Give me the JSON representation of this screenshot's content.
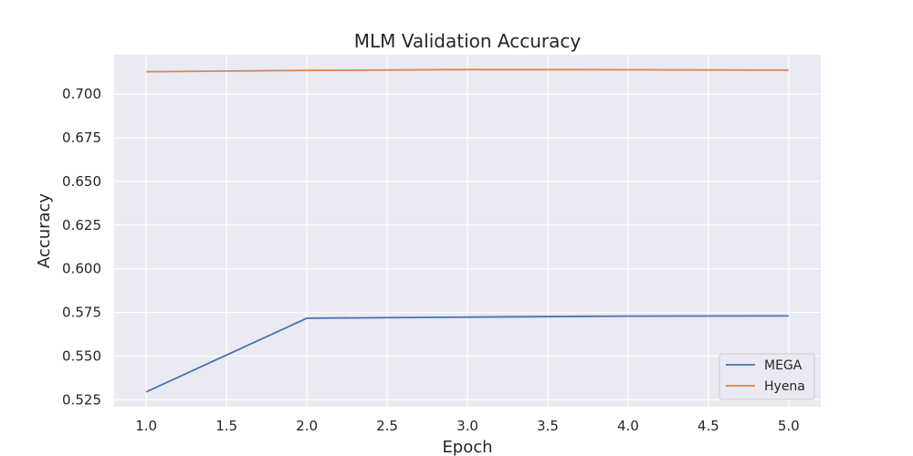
{
  "chart_data": {
    "type": "line",
    "title": "MLM Validation Accuracy",
    "xlabel": "Epoch",
    "ylabel": "Accuracy",
    "xlim": [
      0.8,
      5.2
    ],
    "ylim": [
      0.521,
      0.7225
    ],
    "xticks": [
      "1.0",
      "1.5",
      "2.0",
      "2.5",
      "3.0",
      "3.5",
      "4.0",
      "4.5",
      "5.0"
    ],
    "yticks": [
      "0.525",
      "0.550",
      "0.575",
      "0.600",
      "0.625",
      "0.650",
      "0.675",
      "0.700"
    ],
    "x": [
      1,
      2,
      3,
      4,
      5
    ],
    "series": [
      {
        "name": "MEGA",
        "color": "#4c72b0",
        "values": [
          0.5295,
          0.5717,
          0.5723,
          0.5729,
          0.573
        ]
      },
      {
        "name": "Hyena",
        "color": "#dd8452",
        "values": [
          0.7128,
          0.7135,
          0.714,
          0.7139,
          0.7137
        ]
      }
    ],
    "grid": true,
    "legend_position": "lower-right",
    "background": "#eaeaf2"
  }
}
